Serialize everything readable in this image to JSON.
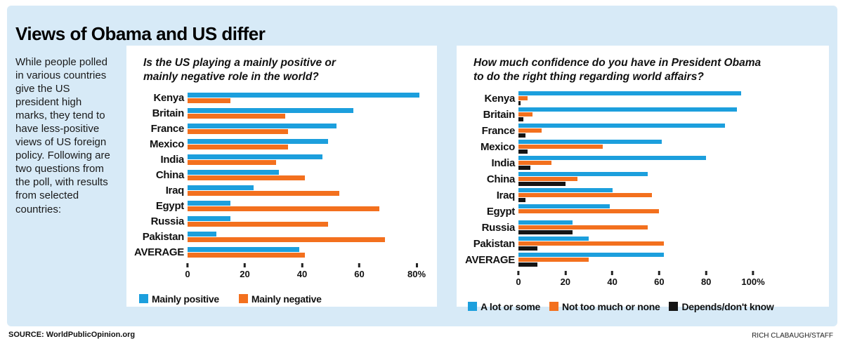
{
  "title": "Views of Obama and US differ",
  "intro": "While people polled in various countries give the US president high marks, they tend to have less-positive views of US foreign policy. Following are two questions from the poll, with results from selected countries:",
  "footer": {
    "source": "SOURCE: WorldPublicOpinion.org",
    "credit": "RICH CLABAUGH/STAFF"
  },
  "colors": {
    "positive": "#1c9fdd",
    "negative": "#f3701e",
    "depends": "#151515",
    "panel_bg": "#d7eaf7",
    "chart_bg": "#ffffff"
  },
  "chart_data": [
    {
      "type": "bar",
      "orientation": "horizontal",
      "title": "Is the US playing a mainly positive or mainly negative role in the world?",
      "title_lines": [
        "Is the US playing a mainly positive or",
        "mainly negative role in the world?"
      ],
      "categories": [
        "Kenya",
        "Britain",
        "France",
        "Mexico",
        "India",
        "China",
        "Iraq",
        "Egypt",
        "Russia",
        "Pakistan",
        "AVERAGE"
      ],
      "series": [
        {
          "name": "Mainly positive",
          "color_key": "positive",
          "values": [
            81,
            58,
            52,
            49,
            47,
            32,
            23,
            15,
            15,
            10,
            39
          ]
        },
        {
          "name": "Mainly negative",
          "color_key": "negative",
          "values": [
            15,
            34,
            35,
            35,
            31,
            41,
            53,
            67,
            49,
            69,
            41
          ]
        }
      ],
      "xlim": [
        0,
        80
      ],
      "tick_labels": [
        "0",
        "20",
        "40",
        "60",
        "80%"
      ],
      "grid": false,
      "legend_position": "bottom"
    },
    {
      "type": "bar",
      "orientation": "horizontal",
      "title": "How much confidence do you have in President Obama to do the right thing regarding world affairs?",
      "title_lines": [
        "How much confidence do you have in President Obama",
        "to do the right thing regarding world affairs?"
      ],
      "categories": [
        "Kenya",
        "Britain",
        "France",
        "Mexico",
        "India",
        "China",
        "Iraq",
        "Egypt",
        "Russia",
        "Pakistan",
        "AVERAGE"
      ],
      "series": [
        {
          "name": "A lot or some",
          "color_key": "positive",
          "values": [
            95,
            93,
            88,
            61,
            80,
            55,
            40,
            39,
            23,
            30,
            62
          ]
        },
        {
          "name": "Not too much or none",
          "color_key": "negative",
          "values": [
            4,
            6,
            10,
            36,
            14,
            25,
            57,
            60,
            55,
            62,
            30
          ]
        },
        {
          "name": "Depends/don't know",
          "color_key": "depends",
          "values": [
            1,
            2,
            3,
            4,
            5,
            20,
            3,
            0,
            23,
            8,
            8
          ]
        }
      ],
      "xlim": [
        0,
        100
      ],
      "tick_labels": [
        "0",
        "20",
        "40",
        "60",
        "80",
        "100%"
      ],
      "grid": false,
      "legend_position": "bottom"
    }
  ]
}
